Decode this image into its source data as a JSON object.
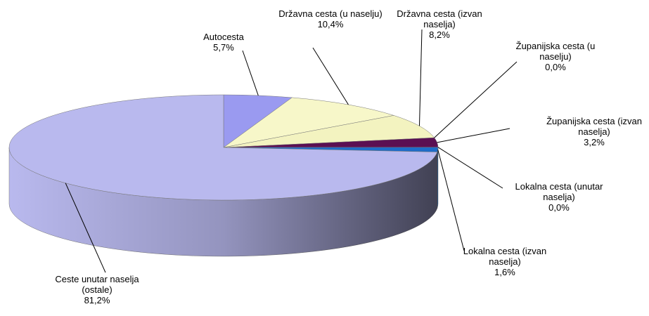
{
  "chart_data": {
    "type": "pie3d",
    "categories": [
      "Autocesta",
      "Državna cesta (u naselju)",
      "Državna cesta (izvan naselja)",
      "Županijska cesta (u naselju)",
      "Županijska cesta (izvan naselja)",
      "Lokalna cesta (unutar naselja)",
      "Lokalna cesta (izvan naselja)",
      "Ceste unutar naselja (ostale)"
    ],
    "values": [
      5.7,
      10.4,
      8.2,
      0.0,
      3.2,
      0.0,
      1.6,
      81.2
    ],
    "value_labels": [
      "5,7%",
      "10,4%",
      "8,2%",
      "0,0%",
      "3,2%",
      "0,0%",
      "1,6%",
      "81,2%"
    ],
    "colors": [
      "#9a9af0",
      "#f7f7c9",
      "#f3f3c0",
      "#ffc0c0",
      "#5b0f52",
      "#80ff80",
      "#1e6cc8",
      "#b9b9ee"
    ]
  }
}
